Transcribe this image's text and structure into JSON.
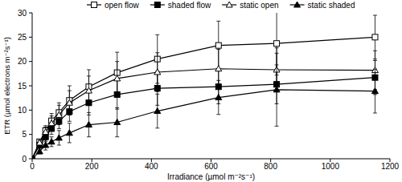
{
  "chart_data": {
    "type": "line",
    "x_label": "Irradiance (µmol m⁻²s⁻¹)",
    "y_label": "ETR (µmol electrons m⁻²s⁻¹)",
    "x": [
      0,
      25,
      45,
      65,
      90,
      125,
      190,
      285,
      420,
      625,
      820,
      1150
    ],
    "series": [
      {
        "name": "open flow",
        "color": "#000000",
        "marker": "square-open",
        "values": [
          0,
          3.5,
          5.8,
          7.8,
          9.5,
          12,
          14.8,
          17.7,
          20.5,
          23.3,
          23.7,
          25
        ],
        "errors": [
          0,
          0.5,
          1,
          1.5,
          2,
          3,
          3.5,
          4.2,
          5,
          5,
          6.5,
          4.5
        ]
      },
      {
        "name": "shaded flow",
        "color": "#000000",
        "marker": "square",
        "values": [
          0,
          2.8,
          4.5,
          6.2,
          7.7,
          9.7,
          11.5,
          13.2,
          14.5,
          14.8,
          15.3,
          16.7
        ],
        "errors": [
          0,
          0.5,
          1,
          1.2,
          1.5,
          2,
          2.5,
          3,
          3.5,
          3.5,
          4,
          3.5
        ]
      },
      {
        "name": "static open",
        "color": "#000000",
        "marker": "triangle-open",
        "values": [
          0,
          3.3,
          5.5,
          7.3,
          9,
          11.5,
          14,
          16.5,
          17.8,
          18.5,
          18.3,
          18.2
        ],
        "errors": [
          0,
          0.5,
          1,
          1.5,
          2,
          2.5,
          3,
          3.5,
          4,
          4,
          4.5,
          4
        ]
      },
      {
        "name": "static shaded",
        "color": "#000000",
        "marker": "triangle",
        "values": [
          0,
          1.5,
          2.8,
          3.5,
          4.3,
          5.3,
          7,
          7.5,
          9.8,
          12.6,
          14.2,
          13.9
        ],
        "errors": [
          0,
          0.5,
          1,
          1,
          1.5,
          2,
          2.5,
          3,
          3.5,
          3.5,
          7.5,
          4.5
        ]
      }
    ],
    "xlim": [
      0,
      1200
    ],
    "xticks": [
      0,
      200,
      400,
      600,
      800,
      1000,
      1200
    ],
    "ylim": [
      0,
      30
    ],
    "yticks": [
      0,
      5,
      10,
      15,
      20,
      25,
      30
    ],
    "grid": false,
    "legend": "top"
  }
}
